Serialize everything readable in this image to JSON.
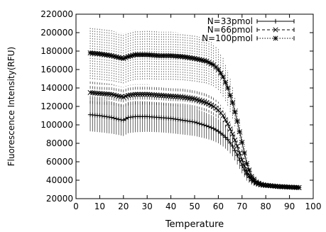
{
  "chart_data": {
    "type": "line",
    "xlabel": "Temperature",
    "ylabel": "Fluorescence Intensity(RFU)",
    "xlim": [
      0,
      100
    ],
    "ylim": [
      20000,
      220000
    ],
    "xticks": [
      0,
      10,
      20,
      30,
      40,
      50,
      60,
      70,
      80,
      90,
      100
    ],
    "yticks": [
      20000,
      40000,
      60000,
      80000,
      100000,
      120000,
      140000,
      160000,
      180000,
      200000,
      220000
    ],
    "xtick_labels": [
      "0",
      "10",
      "20",
      "30",
      "40",
      "50",
      "60",
      "70",
      "80",
      "90",
      "100"
    ],
    "ytick_labels": [
      "20000",
      "40000",
      "60000",
      "80000",
      "100000",
      "120000",
      "140000",
      "160000",
      "180000",
      "200000",
      "220000"
    ],
    "grid": false,
    "legend_position": "top-right",
    "error_bars": true,
    "series": [
      {
        "name": "N=33pmol",
        "marker": "+",
        "line_style": "solid",
        "x": [
          6,
          10,
          15,
          18,
          20,
          22,
          25,
          30,
          35,
          40,
          45,
          50,
          55,
          58,
          60,
          62,
          64,
          66,
          68,
          70,
          72,
          74,
          76,
          78,
          80,
          82,
          84,
          86,
          88,
          90,
          92,
          94
        ],
        "y": [
          111000,
          110000,
          108000,
          106000,
          105000,
          108000,
          109000,
          109000,
          108000,
          107000,
          105000,
          103000,
          99000,
          96000,
          93000,
          89000,
          84000,
          77000,
          67000,
          56000,
          46000,
          40000,
          37000,
          35000,
          34500,
          34000,
          33500,
          33000,
          32800,
          32500,
          32300,
          32000
        ],
        "error": [
          18000,
          18000,
          17500,
          17000,
          17000,
          17000,
          17000,
          16500,
          16000,
          16000,
          15500,
          15000,
          14000,
          13500,
          13000,
          12500,
          12000,
          11000,
          10000,
          8500,
          6500,
          5000,
          4000,
          3000,
          2500,
          2500,
          2500,
          2000,
          2000,
          2000,
          2000,
          2000
        ]
      },
      {
        "name": "N=66pmol",
        "marker": "x",
        "line_style": "dashed",
        "x": [
          6,
          10,
          15,
          18,
          20,
          22,
          25,
          30,
          35,
          40,
          45,
          50,
          55,
          58,
          60,
          62,
          64,
          66,
          68,
          70,
          72,
          74,
          76,
          78,
          80,
          82,
          84,
          86,
          88,
          90,
          92,
          94
        ],
        "y": [
          135000,
          134000,
          133000,
          131000,
          130000,
          132000,
          133000,
          133000,
          132000,
          131000,
          130000,
          128000,
          124000,
          120000,
          116000,
          110000,
          101000,
          90000,
          77000,
          62000,
          49000,
          41000,
          37000,
          35000,
          34500,
          34000,
          33500,
          33000,
          32800,
          32500,
          32300,
          32000
        ],
        "error": [
          12000,
          12000,
          11500,
          11000,
          11000,
          11000,
          11000,
          11000,
          10500,
          10500,
          10000,
          10000,
          9500,
          9500,
          9000,
          8500,
          8000,
          7500,
          6500,
          5500,
          4500,
          3500,
          3000,
          2500,
          2500,
          2500,
          2000,
          2000,
          2000,
          2000,
          2000,
          2000
        ]
      },
      {
        "name": "N=100pmol",
        "marker": "*",
        "line_style": "dotted",
        "x": [
          6,
          10,
          15,
          18,
          20,
          22,
          25,
          30,
          35,
          40,
          45,
          50,
          55,
          58,
          60,
          62,
          64,
          66,
          68,
          70,
          72,
          74,
          76,
          78,
          80,
          82,
          84,
          86,
          88,
          90,
          92,
          94
        ],
        "y": [
          178000,
          177000,
          175000,
          173000,
          172000,
          174000,
          176000,
          176000,
          175000,
          175000,
          174000,
          172000,
          169000,
          165000,
          160000,
          152000,
          140000,
          124000,
          104000,
          81000,
          58000,
          44000,
          38000,
          35500,
          34500,
          34000,
          33500,
          33000,
          32800,
          32500,
          32300,
          32000
        ],
        "error": [
          28000,
          28000,
          27500,
          27000,
          27000,
          27000,
          27000,
          26500,
          26000,
          26000,
          25500,
          25000,
          24000,
          23000,
          22000,
          21000,
          19000,
          17000,
          14000,
          11000,
          8000,
          6000,
          4500,
          3500,
          3000,
          2500,
          2500,
          2000,
          2000,
          2000,
          2000,
          2000
        ]
      }
    ]
  }
}
